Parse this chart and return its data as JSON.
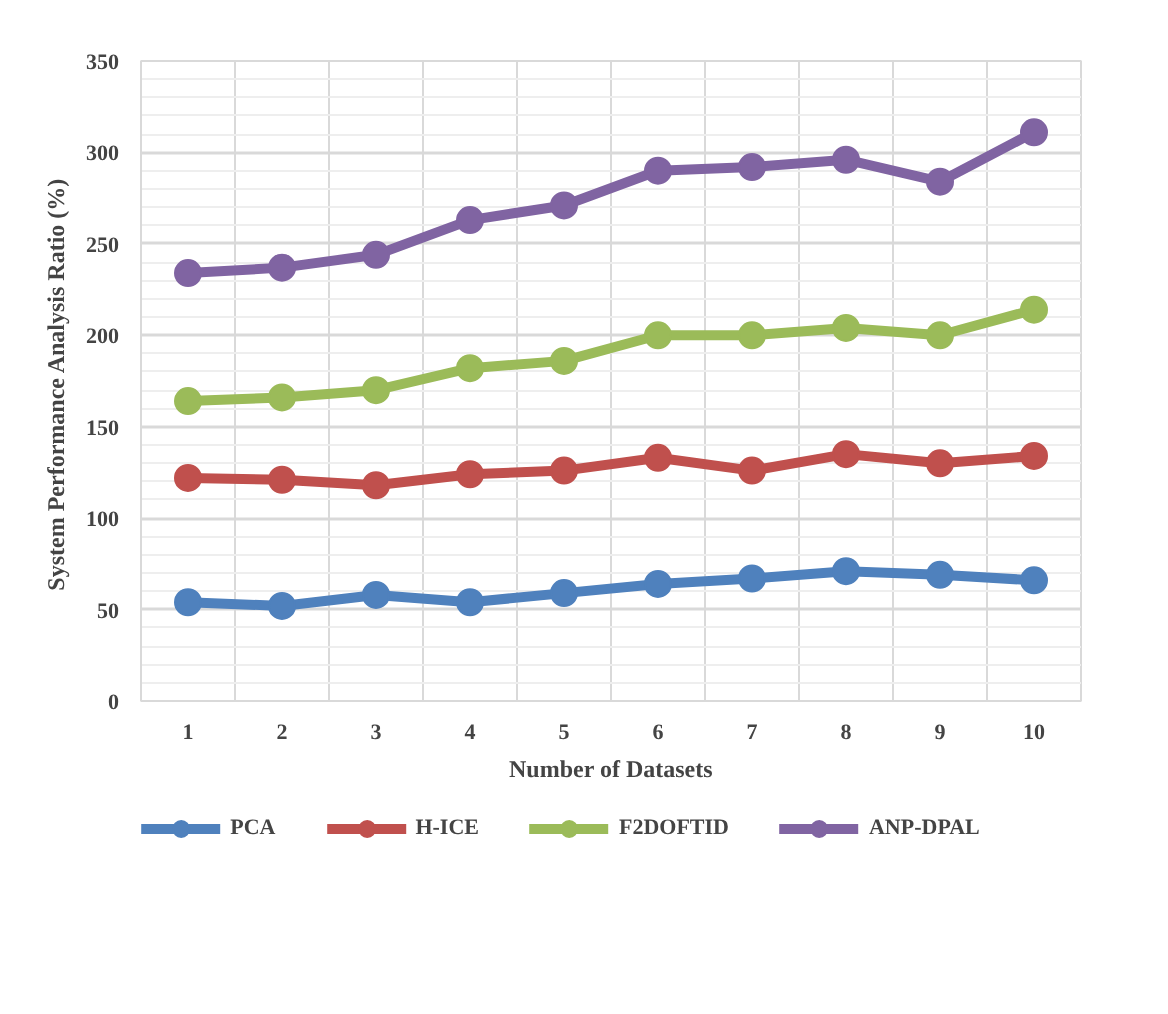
{
  "chart_data": {
    "type": "line",
    "xlabel": "Number of Datasets",
    "ylabel": "System Performance Analysis  Ratio (%)",
    "categories": [
      "1",
      "2",
      "3",
      "4",
      "5",
      "6",
      "7",
      "8",
      "9",
      "10"
    ],
    "series": [
      {
        "name": "PCA",
        "color": "#4f81bd",
        "values": [
          54,
          52,
          58,
          54,
          59,
          64,
          67,
          71,
          69,
          66
        ]
      },
      {
        "name": "H-ICE",
        "color": "#c0504d",
        "values": [
          122,
          121,
          118,
          124,
          126,
          133,
          126,
          135,
          130,
          134
        ]
      },
      {
        "name": "F2DOFTID",
        "color": "#9bbb59",
        "values": [
          164,
          166,
          170,
          182,
          186,
          200,
          200,
          204,
          200,
          214
        ]
      },
      {
        "name": "ANP-DPAL",
        "color": "#8064a2",
        "values": [
          234,
          237,
          244,
          263,
          271,
          290,
          292,
          296,
          284,
          311
        ]
      }
    ],
    "ylim": [
      0,
      350
    ],
    "yticks": [
      0,
      50,
      100,
      150,
      200,
      250,
      300,
      350
    ],
    "grid": true,
    "legend": "bottom",
    "marker": "circle",
    "line_style": "solid"
  }
}
